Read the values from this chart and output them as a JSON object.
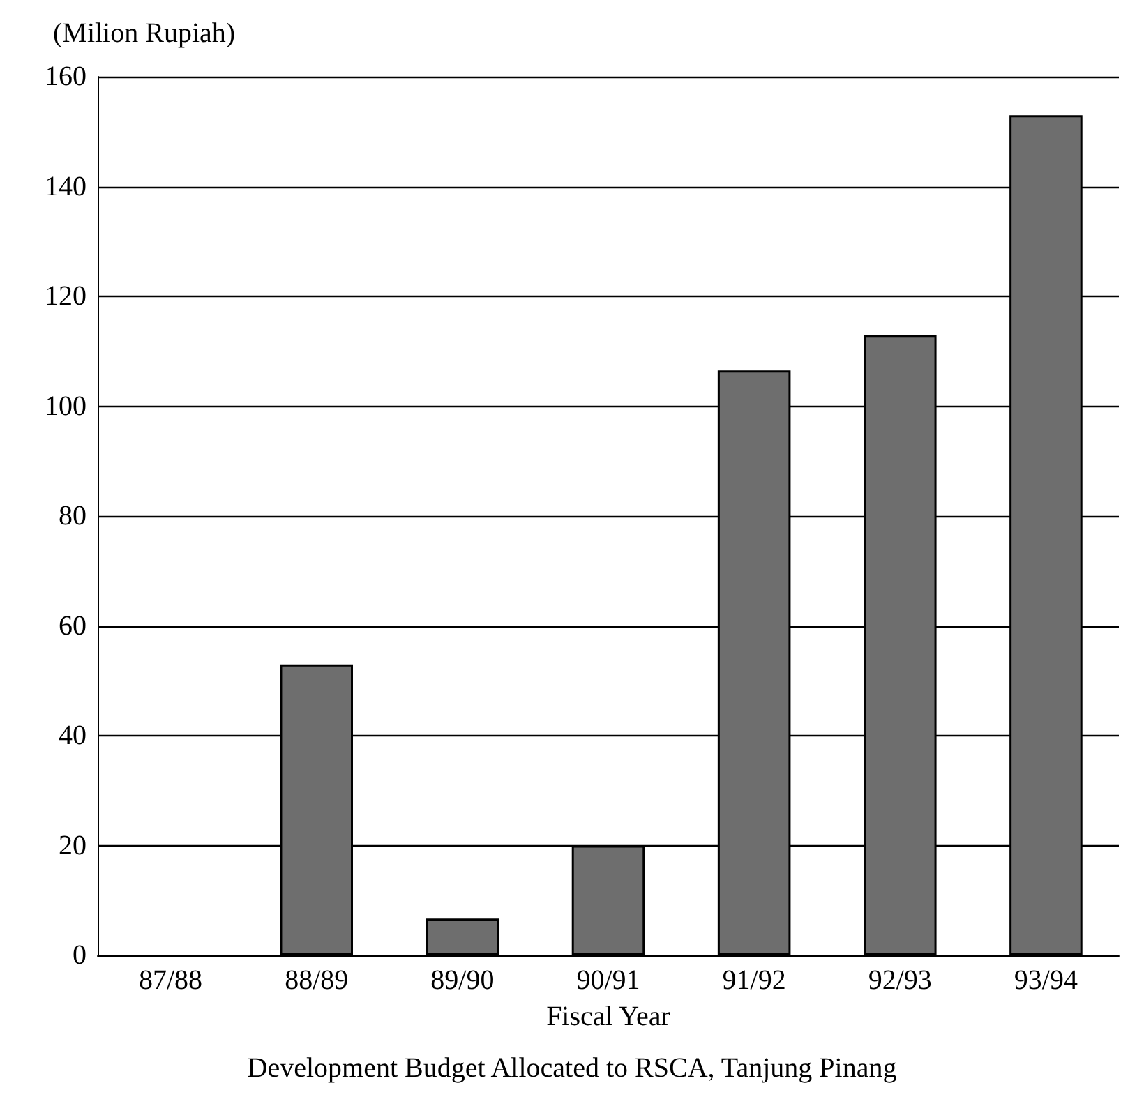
{
  "chart_data": {
    "type": "bar",
    "title": "Development Budget Allocated to RSCA, Tanjung Pinang",
    "xlabel": "Fiscal Year",
    "ylabel": "(Milion Rupiah)",
    "categories": [
      "87/88",
      "88/89",
      "89/90",
      "90/91",
      "91/92",
      "92/93",
      "93/94"
    ],
    "values": [
      0,
      53,
      6.7,
      20,
      106.5,
      113,
      153
    ],
    "color": "#6e6e6e",
    "ylim": [
      0,
      160
    ],
    "yticks": [
      0,
      20,
      40,
      60,
      80,
      100,
      120,
      140,
      160
    ],
    "grid": "y"
  }
}
